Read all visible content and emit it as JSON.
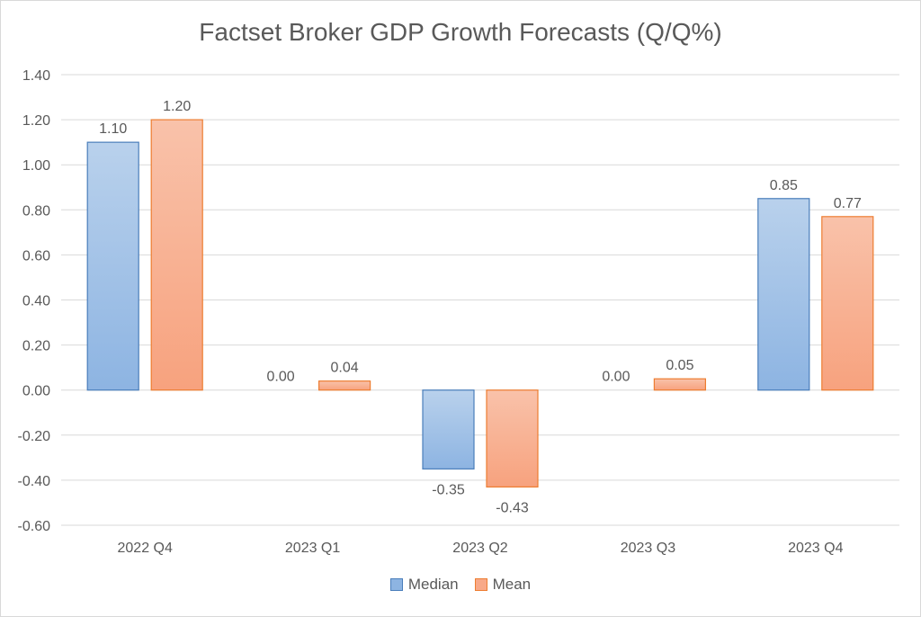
{
  "chart_data": {
    "type": "bar",
    "title": "Factset Broker GDP Growth Forecasts (Q/Q%)",
    "categories": [
      "2022 Q4",
      "2023 Q1",
      "2023 Q2",
      "2023 Q3",
      "2023 Q4"
    ],
    "series": [
      {
        "name": "Median",
        "values": [
          1.1,
          0.0,
          -0.35,
          0.0,
          0.85
        ],
        "color": "#8db4e2",
        "edge": "#4a7ebb"
      },
      {
        "name": "Mean",
        "values": [
          1.2,
          0.04,
          -0.43,
          0.05,
          0.77
        ],
        "color": "#f8a988",
        "edge": "#ed7d31"
      }
    ],
    "ylim": [
      -0.6,
      1.4
    ],
    "yticks": [
      "1.40",
      "1.20",
      "1.00",
      "0.80",
      "0.60",
      "0.40",
      "0.20",
      "0.00",
      "-0.20",
      "-0.40",
      "-0.60"
    ],
    "xlabel": "",
    "ylabel": "",
    "grid": true,
    "legend": "bottom"
  }
}
